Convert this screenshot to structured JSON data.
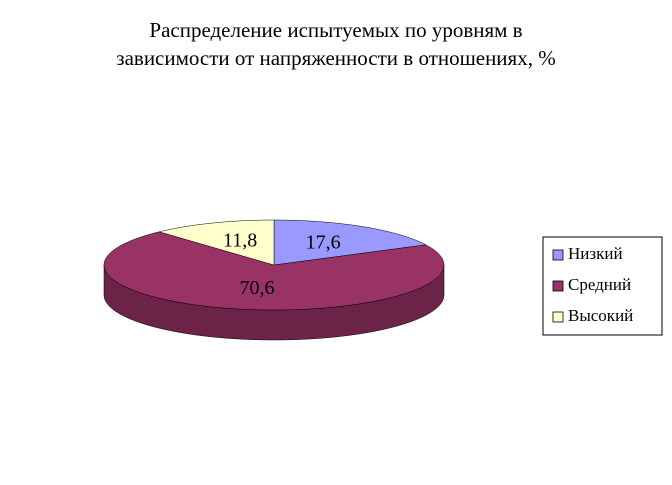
{
  "chart_data": {
    "type": "pie3d",
    "title": [
      "Распределение испытуемых по уровням в",
      "зависимости от напряженности в отношениях, %"
    ],
    "categories": [
      "Низкий",
      "Средний",
      "Высокий"
    ],
    "values": [
      17.6,
      70.6,
      11.8
    ],
    "value_labels": [
      "17,6",
      "70,6",
      "11,8"
    ],
    "colors": [
      "#9999ff",
      "#993366",
      "#ffffcc"
    ],
    "legend": "right"
  }
}
